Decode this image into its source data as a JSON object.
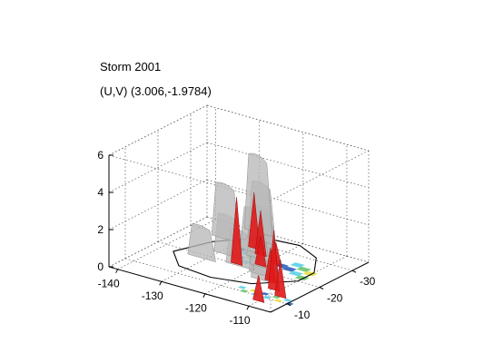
{
  "chart_data": {
    "type": "surface3d",
    "title": "Storm 2001",
    "subtitle": "(U,V) (3.006,-1.9784)",
    "xlabel": "",
    "ylabel": "",
    "zlabel": "",
    "x_axis": {
      "ticks": [
        -140,
        -130,
        -120,
        -110
      ],
      "range": [
        -142,
        -105
      ]
    },
    "y_axis": {
      "ticks": [
        -30,
        -20,
        -10
      ],
      "range": [
        -35,
        -5
      ]
    },
    "z_axis": {
      "ticks": [
        0,
        2,
        4,
        6
      ],
      "range": [
        0,
        6
      ]
    },
    "grid": true,
    "box": "dotted",
    "colors": {
      "isosurface_gray": "#b9b9b9",
      "isosurface_red": "#e01818",
      "slice_blue": "#2a5fb8",
      "slice_cyan": "#5ad0e6",
      "slice_green": "#6cc46a",
      "slice_yellow": "#e8e040",
      "outline": "#000000"
    },
    "gray_columns": [
      {
        "x": -125,
        "y": -28,
        "height": 5.0
      },
      {
        "x": -122,
        "y": -25,
        "height": 4.0
      },
      {
        "x": -128,
        "y": -22,
        "height": 3.8
      },
      {
        "x": -120,
        "y": -20,
        "height": 3.2
      },
      {
        "x": -117,
        "y": -18,
        "height": 3.6
      },
      {
        "x": -114,
        "y": -15,
        "height": 3.4
      },
      {
        "x": -112,
        "y": -12,
        "height": 4.5
      },
      {
        "x": -110,
        "y": -10,
        "height": 4.2
      },
      {
        "x": -118,
        "y": -13,
        "height": 2.8
      },
      {
        "x": -123,
        "y": -16,
        "height": 3.0
      },
      {
        "x": -126,
        "y": -12,
        "height": 2.6
      }
    ],
    "red_spikes": [
      {
        "x": -126,
        "y": -28,
        "height": 3.0
      },
      {
        "x": -123,
        "y": -26,
        "height": 2.4
      },
      {
        "x": -120,
        "y": -22,
        "height": 1.6
      },
      {
        "x": -118,
        "y": -24,
        "height": 1.2
      },
      {
        "x": -124,
        "y": -20,
        "height": 3.6
      },
      {
        "x": -114,
        "y": -17,
        "height": 1.8
      },
      {
        "x": -111,
        "y": -14,
        "height": 3.2
      },
      {
        "x": -108,
        "y": -12,
        "height": 2.0
      },
      {
        "x": -110,
        "y": -8,
        "height": 1.4
      }
    ],
    "base_outline": [
      [
        -137,
        -18
      ],
      [
        -134,
        -26
      ],
      [
        -128,
        -33
      ],
      [
        -120,
        -34
      ],
      [
        -114,
        -31
      ],
      [
        -110,
        -25
      ],
      [
        -110,
        -20
      ],
      [
        -116,
        -14
      ],
      [
        -124,
        -12
      ],
      [
        -132,
        -13
      ],
      [
        -137,
        -18
      ]
    ]
  }
}
